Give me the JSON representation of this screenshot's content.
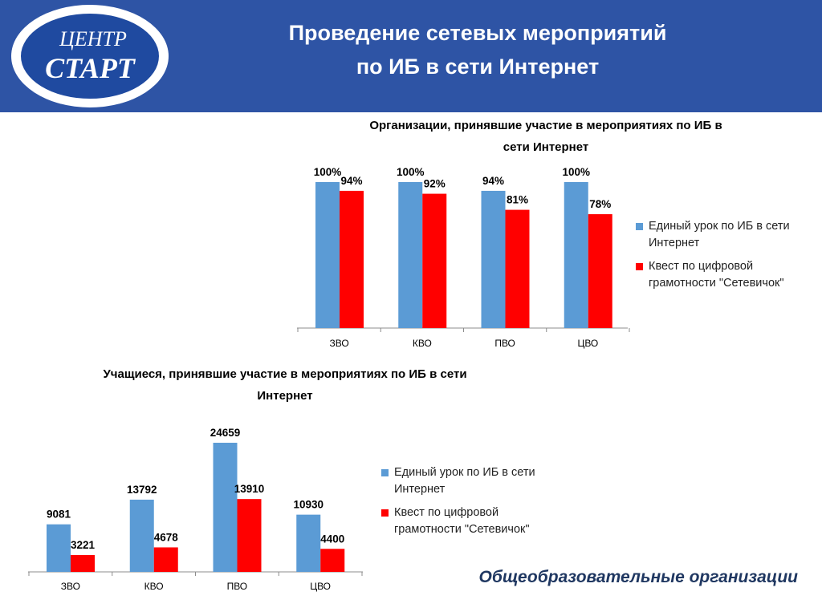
{
  "header": {
    "logo_top": "ЦЕНТР",
    "logo_bottom": "СТАРТ",
    "title_line1": "Проведение сетевых мероприятий",
    "title_line2": "по ИБ в сети Интернет"
  },
  "charts": {
    "organizations": {
      "title_line1": "Организации, принявшие участие в мероприятиях по ИБ в",
      "title_line2": "сети Интернет",
      "legend": [
        {
          "label_line1": "Единый урок по ИБ в сети",
          "label_line2": "Интернет",
          "color": "#5b9bd5"
        },
        {
          "label_line1": "Квест по цифровой",
          "label_line2": "грамотности \"Сетевичок\"",
          "color": "#ff0000"
        }
      ]
    },
    "students": {
      "title_line1": "Учащиеся, принявшие участие в мероприятиях по ИБ в сети",
      "title_line2": "Интернет",
      "legend": [
        {
          "label_line1": "Единый урок по ИБ в сети",
          "label_line2": "Интернет",
          "color": "#5b9bd5"
        },
        {
          "label_line1": "Квест по цифровой",
          "label_line2": "грамотности \"Сетевичок\"",
          "color": "#ff0000"
        }
      ]
    }
  },
  "footer": {
    "text": "Общеобразовательные организации"
  },
  "chart_data": [
    {
      "type": "bar",
      "title": "Организации, принявшие участие в мероприятиях по ИБ в сети Интернет",
      "categories": [
        "ЗВО",
        "КВО",
        "ПВО",
        "ЦВО"
      ],
      "series": [
        {
          "name": "Единый урок по ИБ в сети Интернет",
          "values": [
            100,
            100,
            94,
            100
          ],
          "labels": [
            "100%",
            "100%",
            "94%",
            "100%"
          ],
          "color": "#5b9bd5"
        },
        {
          "name": "Квест по цифровой грамотности \"Сетевичок\"",
          "values": [
            94,
            92,
            81,
            78
          ],
          "labels": [
            "94%",
            "92%",
            "81%",
            "78%"
          ],
          "color": "#ff0000"
        }
      ],
      "ylim": [
        0,
        100
      ],
      "unit": "%",
      "grid": false,
      "legend_position": "right"
    },
    {
      "type": "bar",
      "title": "Учащиеся, принявшие участие в мероприятиях по ИБ в сети Интернет",
      "categories": [
        "ЗВО",
        "КВО",
        "ПВО",
        "ЦВО"
      ],
      "series": [
        {
          "name": "Единый урок по ИБ в сети Интернет",
          "values": [
            9081,
            13792,
            24659,
            10930
          ],
          "labels": [
            "9081",
            "13792",
            "24659",
            "10930"
          ],
          "color": "#5b9bd5"
        },
        {
          "name": "Квест по цифровой грамотности \"Сетевичок\"",
          "values": [
            3221,
            4678,
            13910,
            4400
          ],
          "labels": [
            "3221",
            "4678",
            "13910",
            "4400"
          ],
          "color": "#ff0000"
        }
      ],
      "ylim": [
        0,
        24659
      ],
      "grid": false,
      "legend_position": "right"
    }
  ]
}
